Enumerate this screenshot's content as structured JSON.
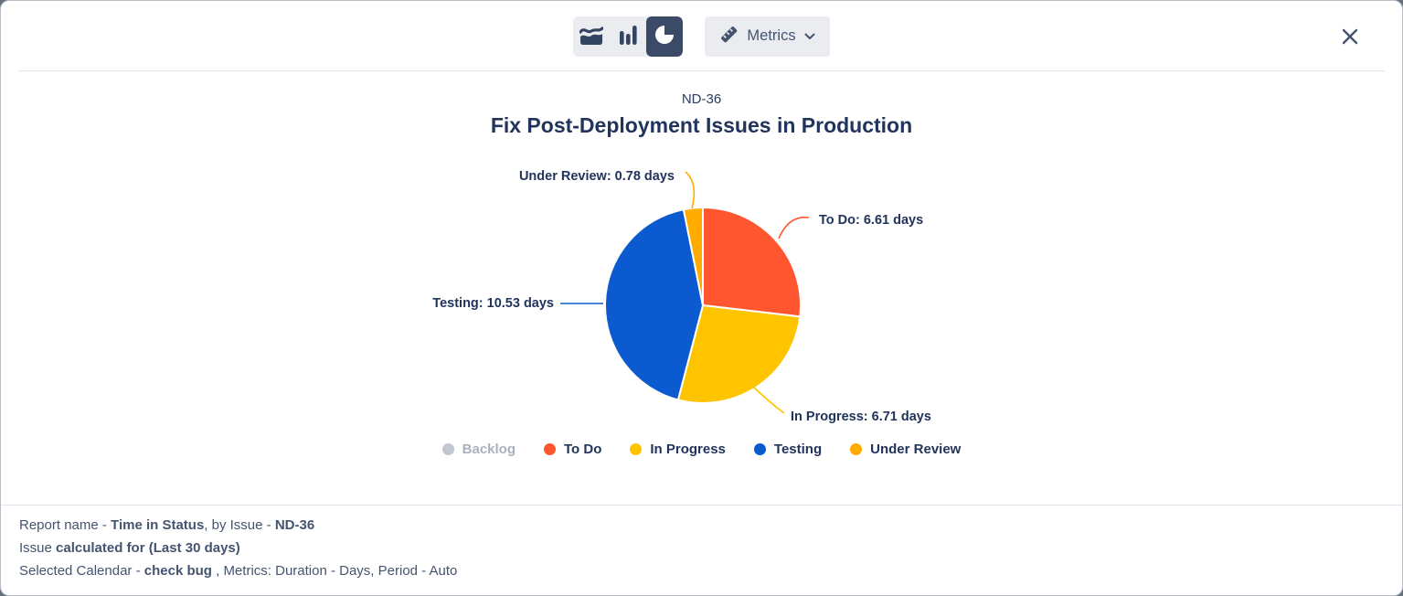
{
  "colors": {
    "accent_navy": "#344563",
    "selected_segment_bg": "#3B4A66",
    "toolbar_bg": "#EBECF0",
    "title_navy": "#21345B",
    "text_slate": "#44546F",
    "divider": "#E2E3E8",
    "backdrop": "#68707F"
  },
  "toolbar": {
    "chart_type_switcher": [
      {
        "icon": "area-chart-icon",
        "selected": false
      },
      {
        "icon": "bar-chart-icon",
        "selected": false
      },
      {
        "icon": "pie-chart-icon",
        "selected": true
      }
    ],
    "metrics_button": {
      "label": "Metrics",
      "icon": "ruler-icon",
      "chevron": "chevron-down-icon"
    },
    "close_icon": "close-icon"
  },
  "chart_header": {
    "issue_key": "ND-36",
    "title": "Fix Post-Deployment Issues in Production"
  },
  "chart_data": {
    "type": "pie",
    "subtitle": "ND-36",
    "title": "Fix Post-Deployment Issues in Production",
    "unit": "days",
    "start_angle_deg": 0,
    "direction": "clockwise",
    "label_format": "{label}: {value} days",
    "slices": [
      {
        "label": "To Do",
        "value": 6.61,
        "color": "#FF5630"
      },
      {
        "label": "In Progress",
        "value": 6.71,
        "color": "#FFC400"
      },
      {
        "label": "Testing",
        "value": 10.53,
        "color": "#0B5AD0"
      },
      {
        "label": "Under Review",
        "value": 0.78,
        "color": "#FFAB00"
      }
    ],
    "legend_position": "bottom",
    "legend": [
      {
        "label": "Backlog",
        "color": "#C1C7D0",
        "muted": true
      },
      {
        "label": "To Do",
        "color": "#FF5630",
        "muted": false
      },
      {
        "label": "In Progress",
        "color": "#FFC400",
        "muted": false
      },
      {
        "label": "Testing",
        "color": "#0B5AD0",
        "muted": false
      },
      {
        "label": "Under Review",
        "color": "#FFAB00",
        "muted": false
      }
    ]
  },
  "footer": {
    "lines": [
      [
        {
          "text": "Report name - ",
          "bold": false
        },
        {
          "text": "Time in Status",
          "bold": true
        },
        {
          "text": ", by Issue - ",
          "bold": false
        },
        {
          "text": "ND-36",
          "bold": true
        }
      ],
      [
        {
          "text": "Issue ",
          "bold": false
        },
        {
          "text": "calculated for (Last 30 days)",
          "bold": true
        }
      ],
      [
        {
          "text": "Selected Calendar - ",
          "bold": false
        },
        {
          "text": "check bug",
          "bold": true
        },
        {
          "text": " , Metrics: Duration - Days, Period - Auto",
          "bold": false
        }
      ]
    ]
  }
}
